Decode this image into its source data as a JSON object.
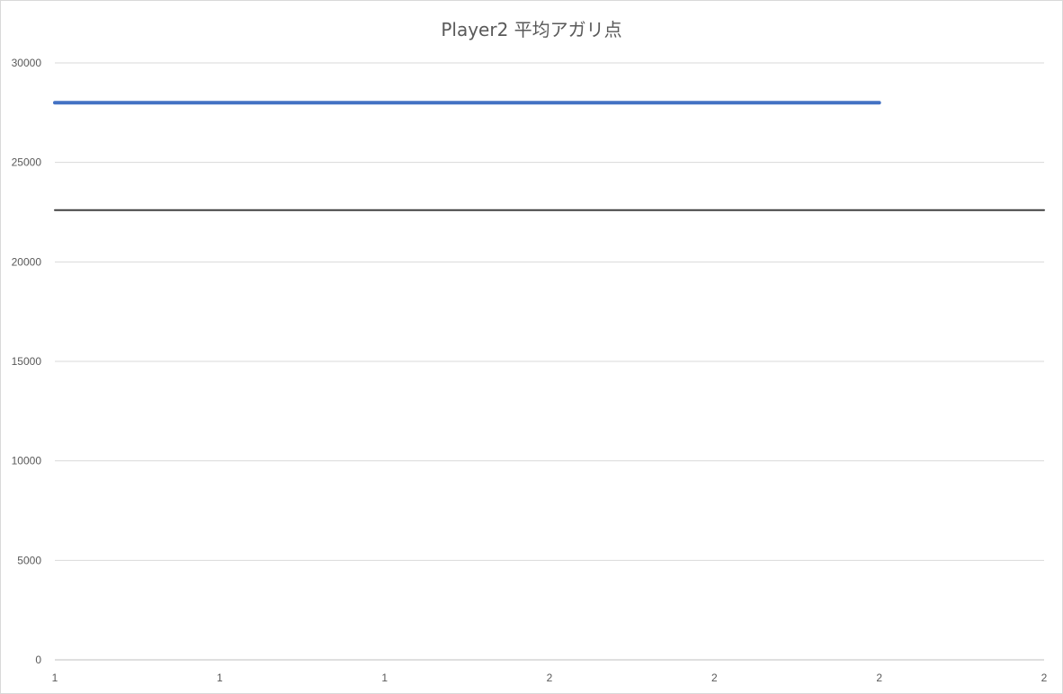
{
  "chart_data": {
    "type": "line",
    "title": "Player2 平均アガリ点",
    "xlabel": "",
    "ylabel": "",
    "ylim": [
      0,
      30000
    ],
    "yticks": [
      0,
      5000,
      10000,
      15000,
      20000,
      25000,
      30000
    ],
    "xtick_labels": [
      "1",
      "1",
      "1",
      "2",
      "2",
      "2",
      "2"
    ],
    "grid": true,
    "legend": "none",
    "series": [
      {
        "color": "#4472c4",
        "x": [
          0,
          5
        ],
        "y": [
          28000,
          28000
        ]
      },
      {
        "color": "#404040",
        "x": [
          0,
          6
        ],
        "y": [
          22600,
          22600
        ]
      }
    ]
  }
}
